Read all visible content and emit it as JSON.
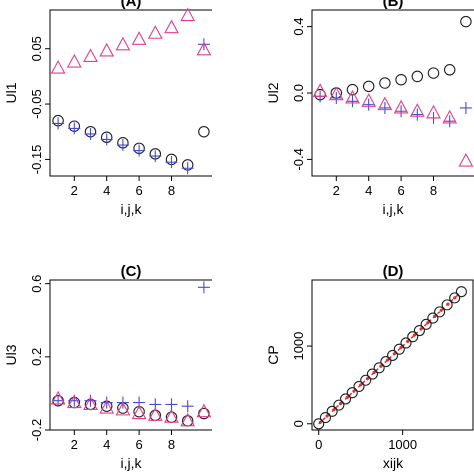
{
  "chart_data": [
    {
      "type": "scatter",
      "title": "(A)",
      "xlabel": "i,j,k",
      "ylabel": "Ul1",
      "xlim": [
        0.5,
        10.5
      ],
      "ylim": [
        -0.18,
        0.12
      ],
      "xticks": [
        "2",
        "4",
        "6",
        "8"
      ],
      "xtick_values": [
        2,
        4,
        6,
        8
      ],
      "yticks": [
        "-0.15",
        "-0.05",
        "0.05"
      ],
      "ytick_values": [
        -0.15,
        -0.05,
        0.05
      ],
      "series": [
        {
          "marker": "circle",
          "color": "#222222",
          "x": [
            1,
            2,
            3,
            4,
            5,
            6,
            7,
            8,
            9,
            10
          ],
          "y": [
            -0.08,
            -0.09,
            -0.1,
            -0.11,
            -0.12,
            -0.13,
            -0.14,
            -0.15,
            -0.16,
            -0.1
          ]
        },
        {
          "marker": "plus",
          "color": "#4a4ad8",
          "x": [
            1,
            2,
            3,
            4,
            5,
            6,
            7,
            8,
            9,
            10
          ],
          "y": [
            -0.085,
            -0.094,
            -0.104,
            -0.114,
            -0.124,
            -0.134,
            -0.144,
            -0.155,
            -0.166,
            0.058
          ]
        },
        {
          "marker": "triangle",
          "color": "#e0408a",
          "x": [
            1,
            2,
            3,
            4,
            5,
            6,
            7,
            8,
            9,
            10
          ],
          "y": [
            0.015,
            0.026,
            0.036,
            0.046,
            0.057,
            0.067,
            0.078,
            0.088,
            0.11,
            0.048
          ]
        }
      ]
    },
    {
      "type": "scatter",
      "title": "(B)",
      "xlabel": "i,j,k",
      "ylabel": "Ul2",
      "xlim": [
        0.5,
        10.5
      ],
      "ylim": [
        -0.5,
        0.5
      ],
      "xticks": [
        "2",
        "4",
        "6",
        "8"
      ],
      "xtick_values": [
        2,
        4,
        6,
        8
      ],
      "yticks": [
        "-0.4",
        "0.0",
        "0.4"
      ],
      "ytick_values": [
        -0.4,
        0.0,
        0.4
      ],
      "series": [
        {
          "marker": "circle",
          "color": "#222222",
          "x": [
            1,
            2,
            3,
            4,
            5,
            6,
            7,
            8,
            9,
            10
          ],
          "y": [
            -0.01,
            0.0,
            0.02,
            0.04,
            0.06,
            0.08,
            0.1,
            0.12,
            0.14,
            0.43
          ]
        },
        {
          "marker": "plus",
          "color": "#4a4ad8",
          "x": [
            1,
            2,
            3,
            4,
            5,
            6,
            7,
            8,
            9,
            10
          ],
          "y": [
            -0.02,
            -0.03,
            -0.05,
            -0.07,
            -0.09,
            -0.11,
            -0.13,
            -0.15,
            -0.17,
            -0.09
          ]
        },
        {
          "marker": "triangle",
          "color": "#e0408a",
          "x": [
            1,
            2,
            3,
            4,
            5,
            6,
            7,
            8,
            9,
            10
          ],
          "y": [
            0.01,
            -0.01,
            -0.03,
            -0.05,
            -0.07,
            -0.09,
            -0.11,
            -0.12,
            -0.15,
            -0.41
          ]
        }
      ]
    },
    {
      "type": "scatter",
      "title": "(C)",
      "xlabel": "i,j,k",
      "ylabel": "Ul3",
      "xlim": [
        0.5,
        10.5
      ],
      "ylim": [
        -0.2,
        0.62
      ],
      "xticks": [
        "2",
        "4",
        "6",
        "8"
      ],
      "xtick_values": [
        2,
        4,
        6,
        8
      ],
      "yticks": [
        "-0.2",
        "0.2",
        "0.6"
      ],
      "ytick_values": [
        -0.2,
        0.2,
        0.6
      ],
      "series": [
        {
          "marker": "circle",
          "color": "#222222",
          "x": [
            1,
            2,
            3,
            4,
            5,
            6,
            7,
            8,
            9,
            10
          ],
          "y": [
            -0.04,
            -0.05,
            -0.06,
            -0.07,
            -0.08,
            -0.1,
            -0.12,
            -0.13,
            -0.15,
            -0.11
          ]
        },
        {
          "marker": "plus",
          "color": "#4a4ad8",
          "x": [
            1,
            2,
            3,
            4,
            5,
            6,
            7,
            8,
            9,
            10
          ],
          "y": [
            -0.04,
            -0.04,
            -0.04,
            -0.05,
            -0.05,
            -0.05,
            -0.06,
            -0.06,
            -0.07,
            0.58
          ]
        },
        {
          "marker": "triangle",
          "color": "#e0408a",
          "x": [
            1,
            2,
            3,
            4,
            5,
            6,
            7,
            8,
            9,
            10
          ],
          "y": [
            -0.03,
            -0.05,
            -0.06,
            -0.08,
            -0.09,
            -0.11,
            -0.12,
            -0.13,
            -0.15,
            -0.1
          ]
        }
      ]
    },
    {
      "type": "scatter",
      "title": "(D)",
      "xlabel": "xijk",
      "ylabel": "CP",
      "xlim": [
        -80,
        1850
      ],
      "ylim": [
        -80,
        1850
      ],
      "xticks": [
        "0",
        "1000"
      ],
      "xtick_values": [
        0,
        1000
      ],
      "yticks": [
        "0",
        "1000"
      ],
      "ytick_values": [
        0,
        1000
      ],
      "series": [
        {
          "marker": "circle",
          "color": "#222222",
          "x": [
            0,
            80,
            160,
            240,
            320,
            400,
            480,
            560,
            640,
            720,
            800,
            880,
            960,
            1040,
            1120,
            1200,
            1280,
            1360,
            1440,
            1530,
            1620,
            1700
          ],
          "y": [
            0,
            80,
            160,
            240,
            320,
            400,
            480,
            560,
            640,
            720,
            800,
            880,
            960,
            1040,
            1120,
            1200,
            1280,
            1360,
            1440,
            1530,
            1620,
            1700
          ]
        },
        {
          "marker": "dot",
          "color": "#e03030",
          "x": [
            20,
            100,
            180,
            260,
            340,
            420,
            500,
            580,
            660,
            740,
            820,
            900,
            980,
            1060,
            1140,
            1220,
            1300,
            1380,
            1460,
            1540,
            1620
          ],
          "y": [
            20,
            100,
            180,
            260,
            340,
            420,
            500,
            580,
            660,
            740,
            820,
            900,
            980,
            1060,
            1140,
            1220,
            1300,
            1380,
            1460,
            1540,
            1620
          ]
        }
      ]
    }
  ]
}
